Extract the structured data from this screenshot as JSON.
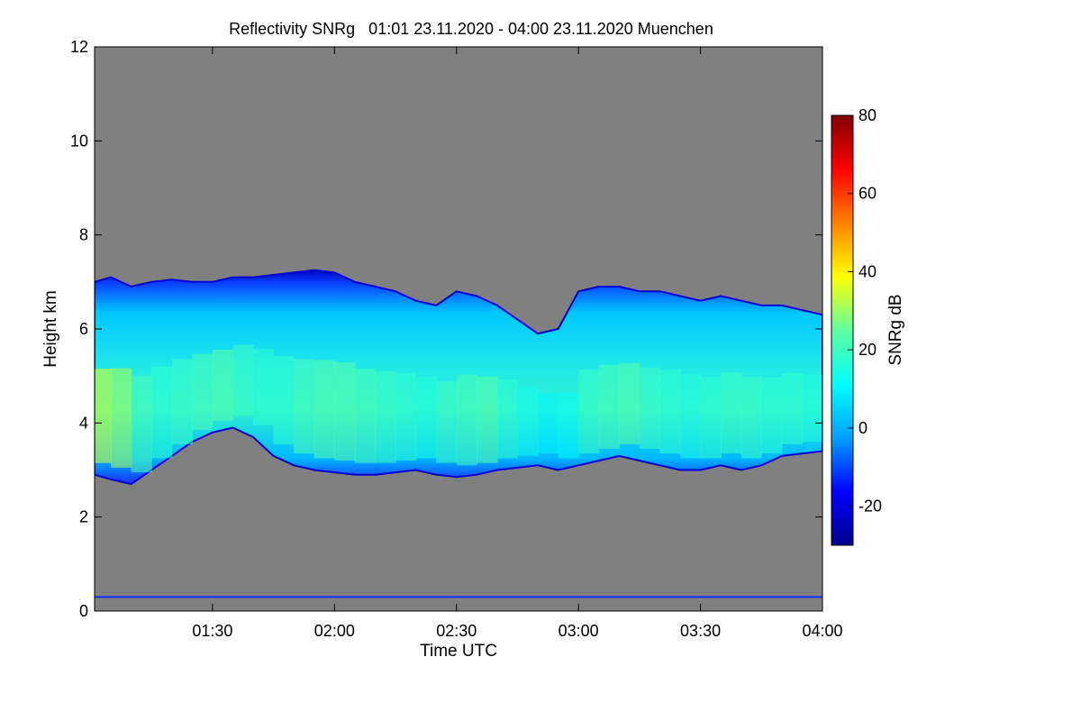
{
  "chart_data": {
    "type": "heatmap",
    "title": "Reflectivity SNRg   01:01 23.11.2020 - 04:00 23.11.2020 Muenchen",
    "xlabel": "Time UTC",
    "ylabel": "Height km",
    "x_start_min": 61,
    "x_end_min": 240,
    "xticks": [
      {
        "minutes": 90,
        "label": "01:30"
      },
      {
        "minutes": 120,
        "label": "02:00"
      },
      {
        "minutes": 150,
        "label": "02:30"
      },
      {
        "minutes": 180,
        "label": "03:00"
      },
      {
        "minutes": 210,
        "label": "03:30"
      },
      {
        "minutes": 240,
        "label": "04:00"
      }
    ],
    "ylim": [
      0,
      12
    ],
    "yticks": [
      0,
      2,
      4,
      6,
      8,
      10,
      12
    ],
    "colorbar": {
      "label": "SNRg dB",
      "range": [
        -30,
        80
      ],
      "ticks": [
        -20,
        0,
        20,
        40,
        60,
        80
      ],
      "colors": [
        "#00008f",
        "#0000ff",
        "#00a0ff",
        "#00ffff",
        "#60ff9f",
        "#ffff00",
        "#ff8000",
        "#ff0000",
        "#800000"
      ]
    },
    "background_color": "#808080",
    "cloud_profile": {
      "minutes": [
        61,
        65,
        70,
        75,
        80,
        85,
        90,
        95,
        100,
        105,
        110,
        115,
        120,
        125,
        130,
        135,
        140,
        145,
        150,
        155,
        160,
        165,
        170,
        175,
        180,
        185,
        190,
        195,
        200,
        205,
        210,
        215,
        220,
        225,
        230,
        235,
        240
      ],
      "cloud_top_km": [
        7.0,
        7.1,
        6.9,
        7.0,
        7.05,
        7.0,
        7.0,
        7.1,
        7.1,
        7.15,
        7.2,
        7.25,
        7.2,
        7.0,
        6.9,
        6.8,
        6.6,
        6.5,
        6.8,
        6.7,
        6.5,
        6.2,
        5.9,
        6.0,
        6.8,
        6.9,
        6.9,
        6.8,
        6.8,
        6.7,
        6.6,
        6.7,
        6.6,
        6.5,
        6.5,
        6.4,
        6.3
      ],
      "cloud_base_km": [
        2.9,
        2.8,
        2.7,
        3.0,
        3.3,
        3.6,
        3.8,
        3.9,
        3.7,
        3.3,
        3.1,
        3.0,
        2.95,
        2.9,
        2.9,
        2.95,
        3.0,
        2.9,
        2.85,
        2.9,
        3.0,
        3.05,
        3.1,
        3.0,
        3.1,
        3.2,
        3.3,
        3.2,
        3.1,
        3.0,
        3.0,
        3.1,
        3.0,
        3.1,
        3.3,
        3.35,
        3.4
      ],
      "core_snr_db": [
        36,
        32,
        22,
        18,
        20,
        22,
        24,
        20,
        18,
        18,
        22,
        24,
        24,
        22,
        20,
        18,
        16,
        20,
        22,
        24,
        18,
        14,
        10,
        12,
        20,
        22,
        24,
        20,
        18,
        16,
        18,
        20,
        20,
        18,
        18,
        16,
        18
      ]
    }
  }
}
